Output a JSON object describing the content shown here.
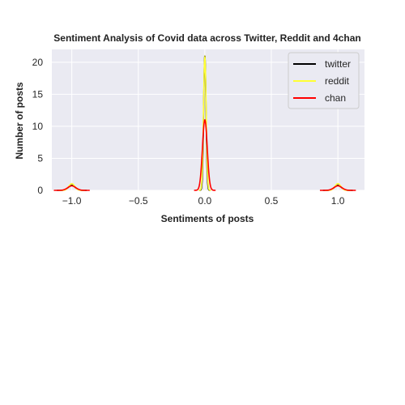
{
  "chart_data": {
    "type": "line",
    "title": "Sentiment Analysis of Covid data across Twitter, Reddit and 4chan",
    "xlabel": "Sentiments of posts",
    "ylabel": "Number of posts",
    "xlim": [
      -1.15,
      1.2
    ],
    "ylim": [
      0,
      22
    ],
    "xticks": [
      -1.0,
      -0.5,
      0.0,
      0.5,
      1.0
    ],
    "xtick_labels": [
      "−1.0",
      "−0.5",
      "0.0",
      "0.5",
      "1.0"
    ],
    "yticks": [
      0,
      5,
      10,
      15,
      20
    ],
    "ytick_labels": [
      "0",
      "5",
      "10",
      "15",
      "20"
    ],
    "grid": true,
    "background": "#eaeaf2",
    "legend_position": "top-right",
    "series": [
      {
        "name": "twitter",
        "color": "#000000",
        "peaks": [
          {
            "center": -1.0,
            "height": 0.8,
            "width": 0.025
          },
          {
            "center": 0.0,
            "height": 21.0,
            "width": 0.009
          },
          {
            "center": 1.0,
            "height": 0.8,
            "width": 0.025
          }
        ]
      },
      {
        "name": "reddit",
        "color": "#ffff33",
        "peaks": [
          {
            "center": -1.0,
            "height": 1.05,
            "width": 0.022
          },
          {
            "center": 0.0,
            "height": 20.8,
            "width": 0.01
          },
          {
            "center": 1.0,
            "height": 1.05,
            "width": 0.022
          }
        ]
      },
      {
        "name": "chan",
        "color": "#ff0000",
        "peaks": [
          {
            "center": -1.0,
            "height": 0.7,
            "width": 0.03
          },
          {
            "center": 0.0,
            "height": 11.0,
            "width": 0.018
          },
          {
            "center": 1.0,
            "height": 0.7,
            "width": 0.03
          }
        ]
      }
    ]
  }
}
